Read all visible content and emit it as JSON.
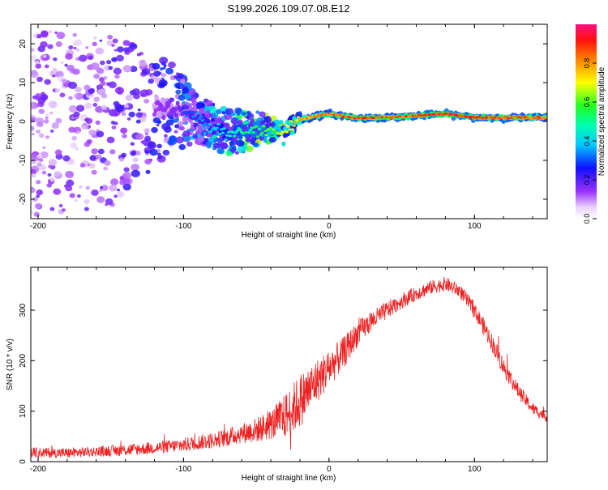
{
  "figure_title": "S199.2026.109.07.08.E12",
  "chart_data": [
    {
      "type": "heatmap",
      "title": "S199.2026.109.07.08.E12",
      "xlabel": "Height of straight line (km)",
      "ylabel": "Frequency (Hz)",
      "xlim": [
        -205,
        150
      ],
      "ylim": [
        -25,
        25
      ],
      "x_ticks": [
        -200,
        -100,
        0,
        100
      ],
      "x_tick_labels": [
        "-200",
        "-100",
        "0",
        "100"
      ],
      "y_ticks": [
        -20,
        -10,
        0,
        10,
        20
      ],
      "y_tick_labels": [
        "-20",
        "-10",
        "0",
        "10",
        "20"
      ],
      "colorbar": {
        "label": "Normalized spectral amplitude",
        "range": [
          0,
          1
        ],
        "ticks": [
          0,
          0.2,
          0.4,
          0.6,
          0.8
        ],
        "tick_labels": [
          "0.0",
          "0.2",
          "0.4",
          "0.6",
          "0.8"
        ]
      },
      "description_points": [
        {
          "x": -200,
          "y_center": 0,
          "spread": 24,
          "amplitude": 0.15
        },
        {
          "x": -150,
          "y_center": 0,
          "spread": 22,
          "amplitude": 0.18
        },
        {
          "x": -110,
          "y_center": 4,
          "spread": 12,
          "amplitude": 0.25
        },
        {
          "x": -90,
          "y_center": 1,
          "spread": 6,
          "amplitude": 0.35
        },
        {
          "x": -70,
          "y_center": -3,
          "spread": 6,
          "amplitude": 0.45
        },
        {
          "x": -50,
          "y_center": -2,
          "spread": 5,
          "amplitude": 0.55
        },
        {
          "x": -30,
          "y_center": -2,
          "spread": 2,
          "amplitude": 0.7
        },
        {
          "x": -20,
          "y_center": 0.5,
          "spread": 1.5,
          "amplitude": 0.8
        },
        {
          "x": 0,
          "y_center": 2,
          "spread": 1.5,
          "amplitude": 0.85
        },
        {
          "x": 20,
          "y_center": 0.8,
          "spread": 1.5,
          "amplitude": 0.9
        },
        {
          "x": 50,
          "y_center": 1.2,
          "spread": 1.5,
          "amplitude": 0.85
        },
        {
          "x": 80,
          "y_center": 2,
          "spread": 1.5,
          "amplitude": 0.95
        },
        {
          "x": 100,
          "y_center": 1,
          "spread": 1.5,
          "amplitude": 0.9
        },
        {
          "x": 130,
          "y_center": 1,
          "spread": 1.5,
          "amplitude": 0.88
        },
        {
          "x": 150,
          "y_center": 1,
          "spread": 1.5,
          "amplitude": 0.85
        }
      ]
    },
    {
      "type": "line",
      "xlabel": "Height of straight line (km)",
      "ylabel": "SNR (10 * v/v)",
      "xlim": [
        -205,
        150
      ],
      "ylim": [
        0,
        385
      ],
      "x_ticks": [
        -200,
        -100,
        0,
        100
      ],
      "x_tick_labels": [
        "-200",
        "-100",
        "0",
        "100"
      ],
      "y_ticks": [
        0,
        100,
        200,
        300
      ],
      "y_tick_labels": [
        "0",
        "100",
        "200",
        "300"
      ],
      "series": [
        {
          "name": "SNR",
          "color": "#ee2222",
          "x": [
            -205,
            -180,
            -160,
            -140,
            -120,
            -100,
            -90,
            -80,
            -70,
            -60,
            -50,
            -40,
            -30,
            -20,
            -10,
            0,
            10,
            20,
            30,
            40,
            50,
            60,
            70,
            80,
            90,
            100,
            110,
            120,
            130,
            140,
            150
          ],
          "y": [
            18,
            17,
            20,
            23,
            27,
            33,
            38,
            42,
            48,
            56,
            63,
            73,
            90,
            120,
            155,
            185,
            215,
            255,
            280,
            300,
            318,
            333,
            345,
            352,
            338,
            300,
            248,
            188,
            140,
            105,
            88
          ],
          "noise": [
            10,
            10,
            10,
            12,
            12,
            14,
            15,
            16,
            18,
            20,
            25,
            30,
            45,
            55,
            45,
            38,
            32,
            25,
            20,
            18,
            15,
            14,
            14,
            14,
            14,
            16,
            18,
            18,
            15,
            12,
            10
          ]
        }
      ]
    }
  ]
}
